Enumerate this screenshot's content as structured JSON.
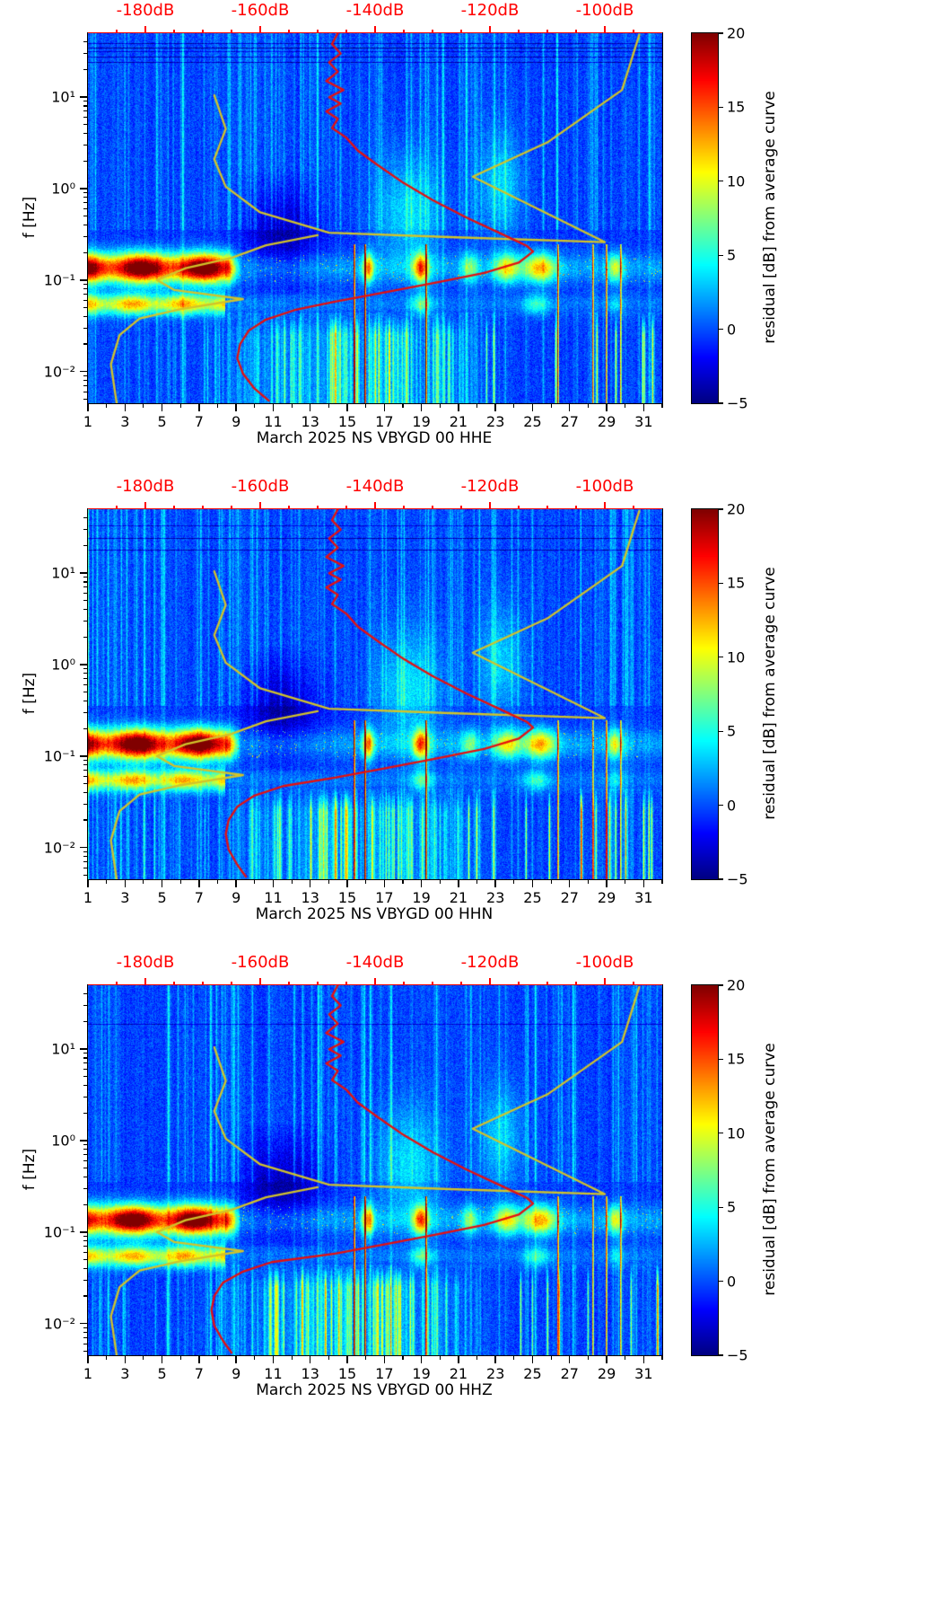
{
  "colors": {
    "curve_red": "#e51010",
    "curve_yellow": "#d2c32a",
    "top_axis_red": "#ff0000"
  },
  "chart_data": [
    {
      "type": "heatmap",
      "channel": "HHE",
      "xlabel": "March 2025 NS VBYGD 00 HHE",
      "ylabel": "f [Hz]",
      "x_range": [
        1,
        32
      ],
      "f_range": [
        0.0045,
        50
      ],
      "x_ticks": {
        "values": [
          1,
          3,
          5,
          7,
          9,
          11,
          13,
          15,
          17,
          19,
          21,
          23,
          25,
          27,
          29,
          31
        ],
        "labels": [
          "1",
          "3",
          "5",
          "7",
          "9",
          "11",
          "13",
          "15",
          "17",
          "19",
          "21",
          "23",
          "25",
          "27",
          "29",
          "31"
        ]
      },
      "y_ticks": {
        "values": [
          10,
          1,
          0.1,
          0.01
        ],
        "labels": [
          "10¹",
          "10⁰",
          "10⁻¹",
          "10⁻²"
        ]
      },
      "top_axis": {
        "db_range": [
          -190,
          -90
        ],
        "tick_values": [
          -180,
          -160,
          -140,
          -120,
          -100
        ],
        "tick_labels": [
          "-180dB",
          "-160dB",
          "-140dB",
          "-120dB",
          "-100dB"
        ],
        "color": "#ff0000"
      },
      "colorbar": {
        "label": "residual [dB] from average curve",
        "vmin": -5,
        "vmax": 20,
        "tick_values": [
          20,
          15,
          10,
          5,
          0,
          -5
        ],
        "tick_labels": [
          "20",
          "15",
          "10",
          "5",
          "0",
          "−5"
        ],
        "colormap": "jet"
      },
      "curves": {
        "average_psd_red": [
          [
            -146.5,
            50
          ],
          [
            -147.5,
            38
          ],
          [
            -146,
            30
          ],
          [
            -148,
            24
          ],
          [
            -146.5,
            19
          ],
          [
            -148.5,
            15
          ],
          [
            -145.5,
            12
          ],
          [
            -148,
            10
          ],
          [
            -146,
            8.5
          ],
          [
            -148.5,
            7
          ],
          [
            -146.5,
            5.8
          ],
          [
            -147.5,
            4.6
          ],
          [
            -145,
            3.6
          ],
          [
            -143,
            2.6
          ],
          [
            -139.5,
            1.8
          ],
          [
            -135,
            1.15
          ],
          [
            -130,
            0.75
          ],
          [
            -124,
            0.48
          ],
          [
            -118,
            0.32
          ],
          [
            -113.5,
            0.235
          ],
          [
            -112.5,
            0.205
          ],
          [
            -115,
            0.155
          ],
          [
            -121,
            0.12
          ],
          [
            -129,
            0.095
          ],
          [
            -138,
            0.074
          ],
          [
            -147,
            0.058
          ],
          [
            -154,
            0.047
          ],
          [
            -159,
            0.037
          ],
          [
            -162,
            0.028
          ],
          [
            -163.5,
            0.02
          ],
          [
            -164,
            0.014
          ],
          [
            -163,
            0.0095
          ],
          [
            -161,
            0.0065
          ],
          [
            -158.5,
            0.0048
          ]
        ],
        "reference_yellow": [
          [
            -168,
            10.5
          ],
          [
            -166,
            4.5
          ],
          [
            -168,
            2.1
          ],
          [
            -166,
            1.05
          ],
          [
            -160,
            0.55
          ],
          [
            -148,
            0.33
          ],
          [
            -127,
            0.295
          ],
          [
            -100,
            0.26
          ],
          [
            -123,
            1.35
          ],
          [
            -110,
            3.2
          ],
          [
            -97,
            12
          ],
          [
            -94,
            48
          ]
        ],
        "reference_yellow_low": [
          [
            -185,
            0.0045
          ],
          [
            -186,
            0.012
          ],
          [
            -184.5,
            0.025
          ],
          [
            -181,
            0.038
          ],
          [
            -174,
            0.048
          ],
          [
            -163,
            0.062
          ],
          [
            -175,
            0.078
          ],
          [
            -178,
            0.1
          ],
          [
            -173,
            0.135
          ],
          [
            -165,
            0.175
          ],
          [
            -159,
            0.24
          ],
          [
            -150,
            0.31
          ]
        ]
      },
      "seed": 101
    },
    {
      "type": "heatmap",
      "channel": "HHN",
      "xlabel": "March 2025 NS VBYGD 00 HHN",
      "ylabel": "f [Hz]",
      "x_range": [
        1,
        32
      ],
      "f_range": [
        0.0045,
        50
      ],
      "x_ticks": {
        "values": [
          1,
          3,
          5,
          7,
          9,
          11,
          13,
          15,
          17,
          19,
          21,
          23,
          25,
          27,
          29,
          31
        ],
        "labels": [
          "1",
          "3",
          "5",
          "7",
          "9",
          "11",
          "13",
          "15",
          "17",
          "19",
          "21",
          "23",
          "25",
          "27",
          "29",
          "31"
        ]
      },
      "y_ticks": {
        "values": [
          10,
          1,
          0.1,
          0.01
        ],
        "labels": [
          "10¹",
          "10⁰",
          "10⁻¹",
          "10⁻²"
        ]
      },
      "top_axis": {
        "db_range": [
          -190,
          -90
        ],
        "tick_values": [
          -180,
          -160,
          -140,
          -120,
          -100
        ],
        "tick_labels": [
          "-180dB",
          "-160dB",
          "-140dB",
          "-120dB",
          "-100dB"
        ],
        "color": "#ff0000"
      },
      "colorbar": {
        "label": "residual [dB] from average curve",
        "vmin": -5,
        "vmax": 20,
        "tick_values": [
          20,
          15,
          10,
          5,
          0,
          -5
        ],
        "tick_labels": [
          "20",
          "15",
          "10",
          "5",
          "0",
          "−5"
        ],
        "colormap": "jet"
      },
      "curves": {
        "average_psd_red": [
          [
            -146.5,
            50
          ],
          [
            -147.5,
            38
          ],
          [
            -146,
            30
          ],
          [
            -148,
            24
          ],
          [
            -146.5,
            19
          ],
          [
            -148.5,
            15
          ],
          [
            -145.5,
            12
          ],
          [
            -148,
            10
          ],
          [
            -146,
            8.5
          ],
          [
            -148.5,
            7
          ],
          [
            -146.5,
            5.8
          ],
          [
            -147.5,
            4.6
          ],
          [
            -145,
            3.6
          ],
          [
            -143,
            2.6
          ],
          [
            -139.5,
            1.8
          ],
          [
            -135,
            1.15
          ],
          [
            -130,
            0.75
          ],
          [
            -124,
            0.48
          ],
          [
            -118,
            0.32
          ],
          [
            -113.5,
            0.235
          ],
          [
            -112.5,
            0.205
          ],
          [
            -115,
            0.155
          ],
          [
            -121,
            0.12
          ],
          [
            -129,
            0.095
          ],
          [
            -138,
            0.074
          ],
          [
            -147,
            0.058
          ],
          [
            -156,
            0.047
          ],
          [
            -161,
            0.037
          ],
          [
            -164,
            0.028
          ],
          [
            -165.5,
            0.02
          ],
          [
            -166,
            0.014
          ],
          [
            -165.5,
            0.0095
          ],
          [
            -164,
            0.0065
          ],
          [
            -162.5,
            0.0048
          ]
        ],
        "reference_yellow": [
          [
            -168,
            10.5
          ],
          [
            -166,
            4.5
          ],
          [
            -168,
            2.1
          ],
          [
            -166,
            1.05
          ],
          [
            -160,
            0.55
          ],
          [
            -148,
            0.33
          ],
          [
            -127,
            0.295
          ],
          [
            -100,
            0.26
          ],
          [
            -123,
            1.35
          ],
          [
            -110,
            3.2
          ],
          [
            -97,
            12
          ],
          [
            -94,
            48
          ]
        ],
        "reference_yellow_low": [
          [
            -185,
            0.0045
          ],
          [
            -186,
            0.012
          ],
          [
            -184.5,
            0.025
          ],
          [
            -181,
            0.038
          ],
          [
            -174,
            0.048
          ],
          [
            -163,
            0.062
          ],
          [
            -175,
            0.078
          ],
          [
            -178,
            0.1
          ],
          [
            -173,
            0.135
          ],
          [
            -165,
            0.175
          ],
          [
            -159,
            0.24
          ],
          [
            -150,
            0.31
          ]
        ]
      },
      "seed": 202
    },
    {
      "type": "heatmap",
      "channel": "HHZ",
      "xlabel": "March 2025 NS VBYGD 00 HHZ",
      "ylabel": "f [Hz]",
      "x_range": [
        1,
        32
      ],
      "f_range": [
        0.0045,
        50
      ],
      "x_ticks": {
        "values": [
          1,
          3,
          5,
          7,
          9,
          11,
          13,
          15,
          17,
          19,
          21,
          23,
          25,
          27,
          29,
          31
        ],
        "labels": [
          "1",
          "3",
          "5",
          "7",
          "9",
          "11",
          "13",
          "15",
          "17",
          "19",
          "21",
          "23",
          "25",
          "27",
          "29",
          "31"
        ]
      },
      "y_ticks": {
        "values": [
          10,
          1,
          0.1,
          0.01
        ],
        "labels": [
          "10¹",
          "10⁰",
          "10⁻¹",
          "10⁻²"
        ]
      },
      "top_axis": {
        "db_range": [
          -190,
          -90
        ],
        "tick_values": [
          -180,
          -160,
          -140,
          -120,
          -100
        ],
        "tick_labels": [
          "-180dB",
          "-160dB",
          "-140dB",
          "-120dB",
          "-100dB"
        ],
        "color": "#ff0000"
      },
      "colorbar": {
        "label": "residual [dB] from average curve",
        "vmin": -5,
        "vmax": 20,
        "tick_values": [
          20,
          15,
          10,
          5,
          0,
          -5
        ],
        "tick_labels": [
          "20",
          "15",
          "10",
          "5",
          "0",
          "−5"
        ],
        "colormap": "jet"
      },
      "curves": {
        "average_psd_red": [
          [
            -146.5,
            50
          ],
          [
            -147.5,
            38
          ],
          [
            -146,
            30
          ],
          [
            -148,
            24
          ],
          [
            -146.5,
            19
          ],
          [
            -148.5,
            15
          ],
          [
            -145.5,
            12
          ],
          [
            -148,
            10
          ],
          [
            -146,
            8.5
          ],
          [
            -148.5,
            7
          ],
          [
            -146.5,
            5.8
          ],
          [
            -147.5,
            4.6
          ],
          [
            -145,
            3.6
          ],
          [
            -143,
            2.6
          ],
          [
            -139.5,
            1.8
          ],
          [
            -135,
            1.15
          ],
          [
            -130,
            0.75
          ],
          [
            -124,
            0.48
          ],
          [
            -118,
            0.32
          ],
          [
            -113.5,
            0.235
          ],
          [
            -112.5,
            0.205
          ],
          [
            -115,
            0.155
          ],
          [
            -121,
            0.12
          ],
          [
            -129,
            0.095
          ],
          [
            -138,
            0.074
          ],
          [
            -147,
            0.058
          ],
          [
            -158,
            0.047
          ],
          [
            -163,
            0.037
          ],
          [
            -166.5,
            0.028
          ],
          [
            -168,
            0.02
          ],
          [
            -168.5,
            0.014
          ],
          [
            -168,
            0.0095
          ],
          [
            -166.5,
            0.0065
          ],
          [
            -165,
            0.0048
          ]
        ],
        "reference_yellow": [
          [
            -168,
            10.5
          ],
          [
            -166,
            4.5
          ],
          [
            -168,
            2.1
          ],
          [
            -166,
            1.05
          ],
          [
            -160,
            0.55
          ],
          [
            -148,
            0.33
          ],
          [
            -127,
            0.295
          ],
          [
            -100,
            0.26
          ],
          [
            -123,
            1.35
          ],
          [
            -110,
            3.2
          ],
          [
            -97,
            12
          ],
          [
            -94,
            48
          ]
        ],
        "reference_yellow_low": [
          [
            -185,
            0.0045
          ],
          [
            -186,
            0.012
          ],
          [
            -184.5,
            0.025
          ],
          [
            -181,
            0.038
          ],
          [
            -174,
            0.048
          ],
          [
            -163,
            0.062
          ],
          [
            -175,
            0.078
          ],
          [
            -178,
            0.1
          ],
          [
            -173,
            0.135
          ],
          [
            -165,
            0.175
          ],
          [
            -159,
            0.24
          ],
          [
            -150,
            0.31
          ]
        ]
      },
      "seed": 303
    }
  ]
}
